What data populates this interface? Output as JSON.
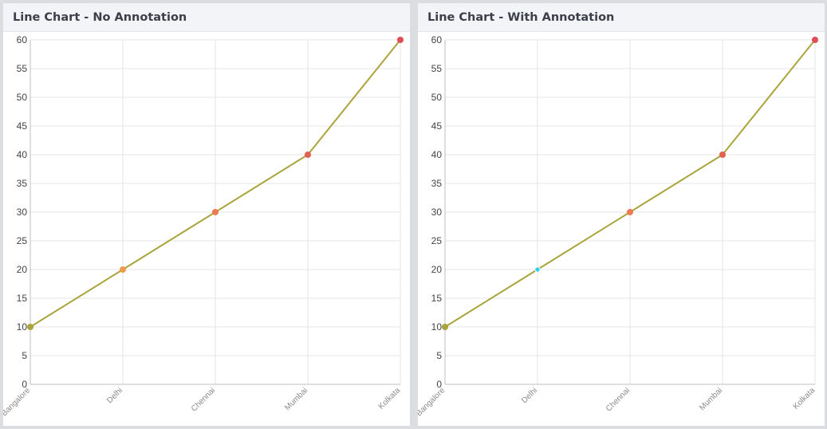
{
  "panels": [
    {
      "title": "Line Chart - No Annotation"
    },
    {
      "title": "Line Chart - With Annotation"
    }
  ],
  "chart_data": [
    {
      "type": "line",
      "title": "Line Chart - No Annotation",
      "categories": [
        "Bangalore",
        "Delhi",
        "Chennai",
        "Mumbai",
        "Kolkata"
      ],
      "series": [
        {
          "values": [
            10,
            20,
            30,
            40,
            60
          ],
          "line_color": "#a9a43b",
          "point_colors": [
            "#a9a43b",
            "#ef9a4a",
            "#ec7a52",
            "#e0614f",
            "#e04d55"
          ]
        }
      ],
      "ylim": [
        0,
        60
      ],
      "yticks": [
        0,
        5,
        10,
        15,
        20,
        25,
        30,
        35,
        40,
        45,
        50,
        55,
        60
      ],
      "grid": true,
      "xlabel": "",
      "ylabel": ""
    },
    {
      "type": "line",
      "title": "Line Chart - With Annotation",
      "categories": [
        "Bangalore",
        "Delhi",
        "Chennai",
        "Mumbai",
        "Kolkata"
      ],
      "series": [
        {
          "values": [
            10,
            20,
            30,
            40,
            60
          ],
          "line_color": "#a9a43b",
          "point_colors": [
            "#a9a43b",
            "#27d2ef",
            "#ec7a52",
            "#e0614f",
            "#e04d55"
          ]
        }
      ],
      "annotation": {
        "category": "Delhi",
        "value": 20,
        "color": "#27d2ef"
      },
      "ylim": [
        0,
        60
      ],
      "yticks": [
        0,
        5,
        10,
        15,
        20,
        25,
        30,
        35,
        40,
        45,
        50,
        55,
        60
      ],
      "grid": true,
      "xlabel": "",
      "ylabel": ""
    }
  ]
}
